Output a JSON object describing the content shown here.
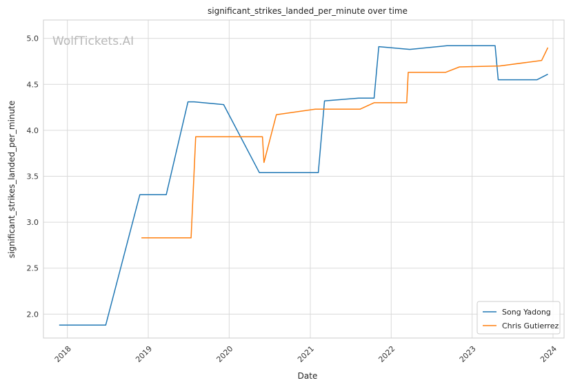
{
  "chart_data": {
    "type": "line",
    "title": "significant_strikes_landed_per_minute over time",
    "xlabel": "Date",
    "ylabel": "significant_strikes_landed_per_minute",
    "watermark": "WolfTickets.AI",
    "x_ticks": [
      "2018",
      "2019",
      "2020",
      "2021",
      "2022",
      "2023",
      "2024"
    ],
    "y_ticks": [
      "2.0",
      "2.5",
      "3.0",
      "3.5",
      "4.0",
      "4.5",
      "5.0"
    ],
    "xlim": [
      "2017-09-15",
      "2024-02-20"
    ],
    "ylim": [
      1.74,
      5.2
    ],
    "grid": true,
    "legend_position": "lower right",
    "series": [
      {
        "name": "Song Yadong",
        "color": "#1f77b4",
        "points": [
          [
            "2017-11-25",
            1.88
          ],
          [
            "2018-06-23",
            1.88
          ],
          [
            "2018-11-24",
            3.3
          ],
          [
            "2019-03-23",
            3.3
          ],
          [
            "2019-06-29",
            4.31
          ],
          [
            "2019-07-27",
            4.31
          ],
          [
            "2019-12-07",
            4.28
          ],
          [
            "2020-05-16",
            3.54
          ],
          [
            "2021-02-06",
            3.54
          ],
          [
            "2021-03-06",
            4.32
          ],
          [
            "2021-08-07",
            4.35
          ],
          [
            "2021-10-16",
            4.35
          ],
          [
            "2021-11-06",
            4.91
          ],
          [
            "2022-03-26",
            4.88
          ],
          [
            "2022-09-10",
            4.92
          ],
          [
            "2023-04-15",
            4.92
          ],
          [
            "2023-04-29",
            4.55
          ],
          [
            "2023-10-21",
            4.55
          ],
          [
            "2023-12-09",
            4.61
          ]
        ]
      },
      {
        "name": "Chris Gutierrez",
        "color": "#ff7f0e",
        "points": [
          [
            "2018-12-01",
            2.83
          ],
          [
            "2019-07-13",
            2.83
          ],
          [
            "2019-08-03",
            3.93
          ],
          [
            "2020-05-30",
            3.93
          ],
          [
            "2020-06-06",
            3.65
          ],
          [
            "2020-08-01",
            4.17
          ],
          [
            "2021-01-23",
            4.23
          ],
          [
            "2021-08-14",
            4.23
          ],
          [
            "2021-10-16",
            4.3
          ],
          [
            "2022-03-12",
            4.3
          ],
          [
            "2022-03-19",
            4.63
          ],
          [
            "2022-09-03",
            4.63
          ],
          [
            "2022-11-05",
            4.69
          ],
          [
            "2023-05-06",
            4.7
          ],
          [
            "2023-11-11",
            4.76
          ],
          [
            "2023-12-09",
            4.9
          ]
        ]
      }
    ]
  }
}
